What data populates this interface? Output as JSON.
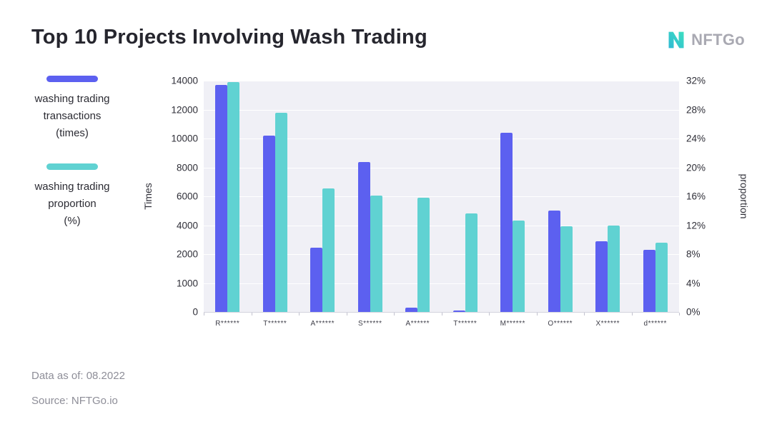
{
  "header": {
    "title": "Top 10 Projects Involving Wash Trading",
    "logo_text": "NFTGo"
  },
  "legend": {
    "items": [
      {
        "line1": "washing trading",
        "line2": "transactions",
        "line3": "(times)",
        "color": "#5c60f0"
      },
      {
        "line1": "washing trading",
        "line2": "proportion",
        "line3": "(%)",
        "color": "#60d2d2"
      }
    ]
  },
  "chart_data": {
    "type": "bar",
    "title": "Top 10 Projects Involving Wash Trading",
    "categories": [
      "R******",
      "T******",
      "A******",
      "S******",
      "A******",
      "T******",
      "M******",
      "O******",
      "X******",
      "d******"
    ],
    "series": [
      {
        "name": "washing trading transactions (times)",
        "axis": "left",
        "color": "#5c60f0",
        "values": [
          13700,
          10200,
          2450,
          8350,
          150,
          60,
          10400,
          5000,
          2900,
          2300
        ]
      },
      {
        "name": "washing trading proportion (%)",
        "axis": "right",
        "color": "#60d2d2",
        "values": [
          31.8,
          27.6,
          17.1,
          16.1,
          15.8,
          13.6,
          12.6,
          11.9,
          12.0,
          9.6
        ]
      }
    ],
    "left_axis": {
      "label": "Times",
      "ticks": [
        "14000",
        "12000",
        "10000",
        "8000",
        "6000",
        "4000",
        "2000",
        "1000",
        "0"
      ],
      "breakpoints": [
        0,
        1000,
        2000,
        4000,
        6000,
        8000,
        10000,
        12000,
        14000
      ]
    },
    "right_axis": {
      "label": "proportion",
      "ticks": [
        "32%",
        "28%",
        "24%",
        "20%",
        "16%",
        "12%",
        "8%",
        "4%",
        "0%"
      ],
      "max": 32
    },
    "grid": true,
    "legend_position": "left"
  },
  "theme": {
    "plot_bg": "#f0f0f6",
    "grid_color": "#ffffff",
    "logo_teal": "#2fc7c4"
  },
  "footer": {
    "data_as_of": "Data as of: 08.2022",
    "source": "Source: NFTGo.io"
  }
}
